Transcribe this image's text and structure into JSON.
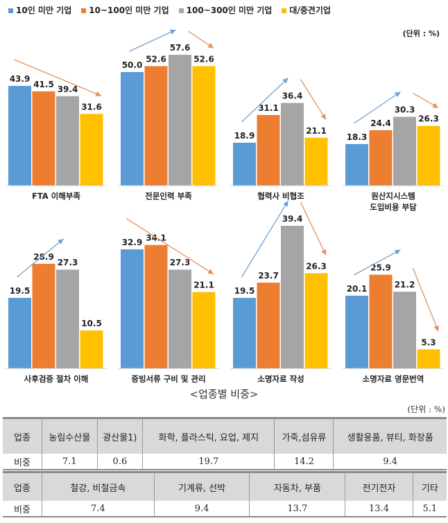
{
  "legend": [
    {
      "label": "10인 미만 기업",
      "color": "#5b9bd5"
    },
    {
      "label": "10~100인 미만 기업",
      "color": "#ed7d31"
    },
    {
      "label": "100~300인 미만 기업",
      "color": "#a5a5a5"
    },
    {
      "label": "대/중견기업",
      "color": "#ffc000"
    }
  ],
  "unit_chart": "(단위 : %)",
  "chart_data": {
    "type": "bar",
    "categories": [
      "FTA 이해부족",
      "전문인력 부족",
      "협력사 비협조",
      "원산지시스템 도입비용 부담",
      "사후검증 절차 이해",
      "증빙서류 구비 및 관리",
      "소명자료 작성",
      "소명자료 영문번역"
    ],
    "category_lines": [
      [
        "FTA 이해부족"
      ],
      [
        "전문인력 부족"
      ],
      [
        "협력사 비협조"
      ],
      [
        "원산지시스템",
        "도입비용 부담"
      ],
      [
        "사후검증 절차 이해"
      ],
      [
        "증빙서류 구비 및 관리"
      ],
      [
        "소명자료 작성"
      ],
      [
        "소명자료 영문번역"
      ]
    ],
    "series": [
      {
        "name": "10인 미만 기업",
        "values": [
          43.9,
          50.0,
          18.9,
          18.3,
          19.5,
          32.9,
          19.5,
          20.1
        ]
      },
      {
        "name": "10~100인 미만 기업",
        "values": [
          41.5,
          52.6,
          31.1,
          24.4,
          28.9,
          34.1,
          23.7,
          25.9
        ]
      },
      {
        "name": "100~300인 미만 기업",
        "values": [
          39.4,
          57.6,
          36.4,
          30.3,
          27.3,
          27.3,
          39.4,
          21.2
        ]
      },
      {
        "name": "대/중견기업",
        "values": [
          31.6,
          52.6,
          21.1,
          26.3,
          10.5,
          21.1,
          26.3,
          5.3
        ]
      }
    ],
    "trend_arrows": [
      [
        "down"
      ],
      [
        "up",
        "down"
      ],
      [
        "up",
        "down"
      ],
      [
        "up",
        "down"
      ],
      [
        "up"
      ],
      [
        "down"
      ],
      [
        "up",
        "down"
      ],
      [
        "up",
        "down"
      ]
    ],
    "grid": false,
    "legend_position": "top"
  },
  "table_title": "<업종별 비중>",
  "table_unit": "(단위 : %)",
  "table1": {
    "header": [
      "업종",
      "농림수산물",
      "광산물1)",
      "화학, 플라스틱, 요업, 제지",
      "가죽,섬유류",
      "생활용품, 뷰티, 화장품"
    ],
    "values": [
      "비중",
      "7.1",
      "0.6",
      "19.7",
      "14.2",
      "9.4"
    ]
  },
  "table2": {
    "header": [
      "업종",
      "철강, 비철금속",
      "기계류, 선박",
      "자동차, 부품",
      "전기전자",
      "기타"
    ],
    "values": [
      "비중",
      "7.4",
      "9.4",
      "13.7",
      "13.4",
      "5.1"
    ]
  }
}
